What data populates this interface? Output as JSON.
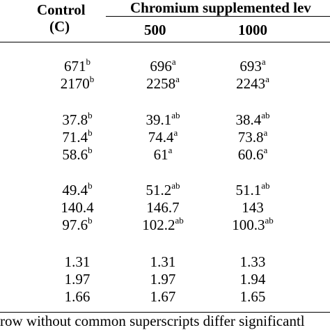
{
  "header": {
    "control_label": "Control",
    "control_abbrev": "(C)",
    "group_label": "Chromium supplemented lev",
    "levels": [
      "500",
      "1000"
    ]
  },
  "rows": [
    [
      {
        "v": "671",
        "s": "b"
      },
      {
        "v": "696",
        "s": "a"
      },
      {
        "v": "693",
        "s": "a"
      }
    ],
    [
      {
        "v": "2170",
        "s": "b"
      },
      {
        "v": "2258",
        "s": "a"
      },
      {
        "v": "2243",
        "s": "a"
      }
    ],
    [
      {
        "v": "37.8",
        "s": "b"
      },
      {
        "v": "39.1",
        "s": "ab"
      },
      {
        "v": "38.4",
        "s": "ab"
      }
    ],
    [
      {
        "v": "71.4",
        "s": "b"
      },
      {
        "v": "74.4",
        "s": "a"
      },
      {
        "v": "73.8",
        "s": "a"
      }
    ],
    [
      {
        "v": "58.6",
        "s": "b"
      },
      {
        "v": "61",
        "s": "a"
      },
      {
        "v": "60.6",
        "s": "a"
      }
    ],
    [
      {
        "v": "49.4",
        "s": "b"
      },
      {
        "v": "51.2",
        "s": "ab"
      },
      {
        "v": "51.1",
        "s": "ab"
      }
    ],
    [
      {
        "v": "140.4",
        "s": ""
      },
      {
        "v": "146.7",
        "s": ""
      },
      {
        "v": "143",
        "s": ""
      }
    ],
    [
      {
        "v": "97.6",
        "s": "b"
      },
      {
        "v": "102.2",
        "s": "ab"
      },
      {
        "v": "100.3",
        "s": "ab"
      }
    ],
    [
      {
        "v": "1.31",
        "s": ""
      },
      {
        "v": "1.31",
        "s": ""
      },
      {
        "v": "1.33",
        "s": ""
      }
    ],
    [
      {
        "v": "1.97",
        "s": ""
      },
      {
        "v": "1.97",
        "s": ""
      },
      {
        "v": "1.94",
        "s": ""
      }
    ],
    [
      {
        "v": "1.66",
        "s": ""
      },
      {
        "v": "1.67",
        "s": ""
      },
      {
        "v": "1.65",
        "s": ""
      }
    ]
  ],
  "footnote": "row without common superscripts differ significantl"
}
